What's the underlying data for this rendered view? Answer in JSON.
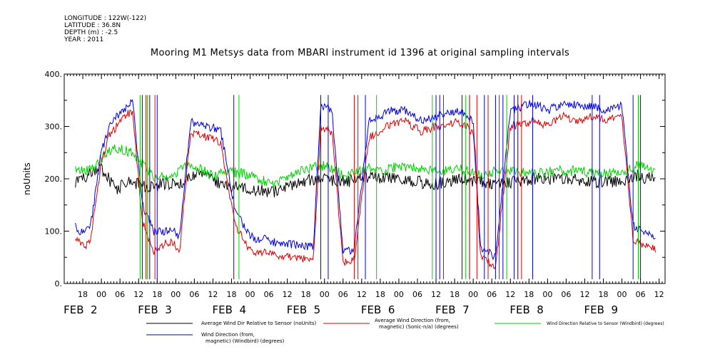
{
  "meta": {
    "longitude": "LONGITUDE : 122W(-122)",
    "latitude": "LATITUDE : 36.8N",
    "depth": "DEPTH (m) : -2.5",
    "year": "YEAR : 2011"
  },
  "chart_data": {
    "type": "line",
    "title": "Mooring M1 Metsys data from MBARI instrument id 1396 at original sampling intervals",
    "ylabel": "noUnits",
    "ylim": [
      0,
      400
    ],
    "yticks": [
      0,
      100,
      200,
      300,
      400
    ],
    "ytick_labels": [
      "0.",
      "100.",
      "200.",
      "300.",
      "400."
    ],
    "xlim": [
      0,
      7.58
    ],
    "xunit": "days since FEB 2 00:00",
    "hour_ticks": [
      {
        "x": -0.25,
        "label": "18"
      },
      {
        "x": 0.0,
        "label": "00"
      },
      {
        "x": 0.25,
        "label": "06"
      },
      {
        "x": 0.5,
        "label": "12"
      },
      {
        "x": 0.75,
        "label": "18"
      },
      {
        "x": 1.0,
        "label": "00"
      },
      {
        "x": 1.25,
        "label": "06"
      },
      {
        "x": 1.5,
        "label": "12"
      },
      {
        "x": 1.75,
        "label": "18"
      },
      {
        "x": 2.0,
        "label": "00"
      },
      {
        "x": 2.25,
        "label": "06"
      },
      {
        "x": 2.5,
        "label": "12"
      },
      {
        "x": 2.75,
        "label": "18"
      },
      {
        "x": 3.0,
        "label": "00"
      },
      {
        "x": 3.25,
        "label": "06"
      },
      {
        "x": 3.5,
        "label": "12"
      },
      {
        "x": 3.75,
        "label": "18"
      },
      {
        "x": 4.0,
        "label": "00"
      },
      {
        "x": 4.25,
        "label": "06"
      },
      {
        "x": 4.5,
        "label": "12"
      },
      {
        "x": 4.75,
        "label": "18"
      },
      {
        "x": 5.0,
        "label": "00"
      },
      {
        "x": 5.25,
        "label": "06"
      },
      {
        "x": 5.5,
        "label": "12"
      },
      {
        "x": 5.75,
        "label": "18"
      },
      {
        "x": 6.0,
        "label": "00"
      },
      {
        "x": 6.25,
        "label": "06"
      },
      {
        "x": 6.5,
        "label": "12"
      },
      {
        "x": 6.75,
        "label": "18"
      },
      {
        "x": 7.0,
        "label": "00"
      },
      {
        "x": 7.25,
        "label": "06"
      },
      {
        "x": 7.5,
        "label": "12"
      }
    ],
    "day_labels": [
      {
        "x": 0.0,
        "label": "FEB  2"
      },
      {
        "x": 1.0,
        "label": "FEB  3"
      },
      {
        "x": 2.0,
        "label": "FEB  4"
      },
      {
        "x": 3.0,
        "label": "FEB  5"
      },
      {
        "x": 4.0,
        "label": "FEB  6"
      },
      {
        "x": 5.0,
        "label": "FEB  7"
      },
      {
        "x": 6.0,
        "label": "FEB  8"
      },
      {
        "x": 7.0,
        "label": "FEB  9"
      }
    ],
    "grid": false,
    "series": [
      {
        "name": "Average Wind Dir Relative to Sensor (noUnits)",
        "color": "#000000",
        "noise": 12,
        "x": [
          -0.35,
          0.0,
          0.2,
          0.35,
          0.6,
          0.85,
          1.1,
          1.3,
          1.6,
          2.0,
          2.3,
          2.7,
          3.0,
          3.3,
          3.6,
          3.9,
          4.2,
          4.5,
          4.8,
          5.1,
          5.4,
          5.8,
          6.2,
          6.6,
          7.0,
          7.2,
          7.45
        ],
        "y": [
          195,
          220,
          180,
          195,
          185,
          190,
          195,
          210,
          190,
          180,
          175,
          195,
          200,
          195,
          205,
          200,
          195,
          190,
          200,
          195,
          190,
          200,
          200,
          195,
          195,
          205,
          200
        ]
      },
      {
        "name": "Average Wind Direction (from, magnetic) (Sonic-n/a) (degrees)",
        "color": "#e00000",
        "noise": 8,
        "x": [
          -0.35,
          -0.25,
          -0.15,
          0.0,
          0.1,
          0.2,
          0.3,
          0.42,
          0.55,
          0.7,
          0.85,
          0.95,
          1.05,
          1.2,
          1.4,
          1.6,
          1.8,
          1.95,
          2.05,
          2.2,
          2.4,
          2.6,
          2.85,
          2.95,
          3.1,
          3.25,
          3.4,
          3.6,
          3.9,
          4.1,
          4.3,
          4.5,
          4.8,
          5.0,
          5.1,
          5.3,
          5.5,
          5.8,
          6.0,
          6.2,
          6.4,
          6.6,
          6.8,
          7.0,
          7.15,
          7.3,
          7.45
        ],
        "y": [
          90,
          70,
          80,
          230,
          280,
          300,
          320,
          330,
          120,
          60,
          75,
          80,
          60,
          290,
          280,
          270,
          110,
          75,
          55,
          60,
          50,
          50,
          45,
          300,
          290,
          40,
          45,
          280,
          305,
          310,
          290,
          300,
          310,
          290,
          50,
          30,
          300,
          310,
          300,
          320,
          310,
          320,
          310,
          320,
          80,
          75,
          65
        ]
      },
      {
        "name": "Wind Direction Relative to Sensor (Windbird) (degrees)",
        "color": "#00d000",
        "noise": 10,
        "x": [
          -0.35,
          -0.1,
          0.0,
          0.2,
          0.4,
          0.55,
          0.7,
          0.9,
          1.1,
          1.3,
          1.5,
          1.7,
          1.9,
          2.1,
          2.3,
          2.5,
          2.8,
          3.0,
          3.3,
          3.6,
          3.8,
          4.0,
          4.3,
          4.6,
          4.9,
          5.1,
          5.3,
          5.5,
          5.8,
          6.1,
          6.4,
          6.7,
          7.0,
          7.2,
          7.45
        ],
        "y": [
          215,
          220,
          240,
          260,
          250,
          230,
          205,
          200,
          225,
          220,
          205,
          215,
          210,
          200,
          190,
          205,
          220,
          225,
          205,
          220,
          215,
          225,
          220,
          215,
          220,
          205,
          215,
          215,
          210,
          215,
          215,
          210,
          210,
          225,
          215
        ]
      },
      {
        "name": "Wind Direction (from, magnetic) (Windbird) (degrees)",
        "color": "#0000e0",
        "noise": 8,
        "x": [
          -0.35,
          -0.25,
          -0.15,
          0.0,
          0.1,
          0.2,
          0.3,
          0.42,
          0.55,
          0.7,
          0.85,
          0.95,
          1.05,
          1.2,
          1.4,
          1.6,
          1.8,
          1.95,
          2.05,
          2.2,
          2.4,
          2.6,
          2.85,
          2.95,
          3.1,
          3.25,
          3.4,
          3.6,
          3.9,
          4.1,
          4.3,
          4.5,
          4.8,
          5.0,
          5.1,
          5.3,
          5.5,
          5.8,
          6.0,
          6.2,
          6.4,
          6.6,
          6.8,
          7.0,
          7.15,
          7.3,
          7.45
        ],
        "y": [
          110,
          95,
          105,
          250,
          300,
          320,
          330,
          350,
          150,
          100,
          100,
          105,
          90,
          310,
          300,
          295,
          140,
          100,
          85,
          85,
          75,
          75,
          70,
          340,
          330,
          60,
          65,
          310,
          330,
          330,
          310,
          320,
          330,
          310,
          70,
          50,
          330,
          345,
          330,
          345,
          340,
          340,
          330,
          340,
          110,
          100,
          85
        ]
      }
    ],
    "spikes": [
      {
        "series": 3,
        "x": [
          0.55,
          0.65,
          0.75,
          1.78,
          2.95,
          3.05,
          3.55,
          4.5,
          4.55,
          4.85,
          4.95,
          5.15,
          5.3,
          5.4,
          5.55,
          5.6,
          5.8,
          6.6,
          6.7,
          7.15,
          7.25
        ]
      },
      {
        "series": 1,
        "x": [
          0.6,
          0.72,
          1.78,
          3.4,
          3.45,
          4.6,
          4.95,
          5.05,
          5.2,
          5.35,
          5.6,
          5.65
        ]
      },
      {
        "series": 2,
        "x": [
          0.52,
          0.62,
          1.85,
          3.7,
          4.45,
          4.9,
          5.45,
          7.22
        ]
      }
    ]
  },
  "legend": {
    "black_label": "Average Wind Dir Relative to Sensor (noUnits)",
    "red_label_1": "Average Wind Direction (from,",
    "red_label_2": "magnetic) (Sonic-n/a) (degrees)",
    "green_label": "Wind Direction Relative to Sensor (Windbird) (degrees)",
    "blue_label_1": "Wind Direction (from,",
    "blue_label_2": "magnetic) (Windbird) (degrees)"
  }
}
